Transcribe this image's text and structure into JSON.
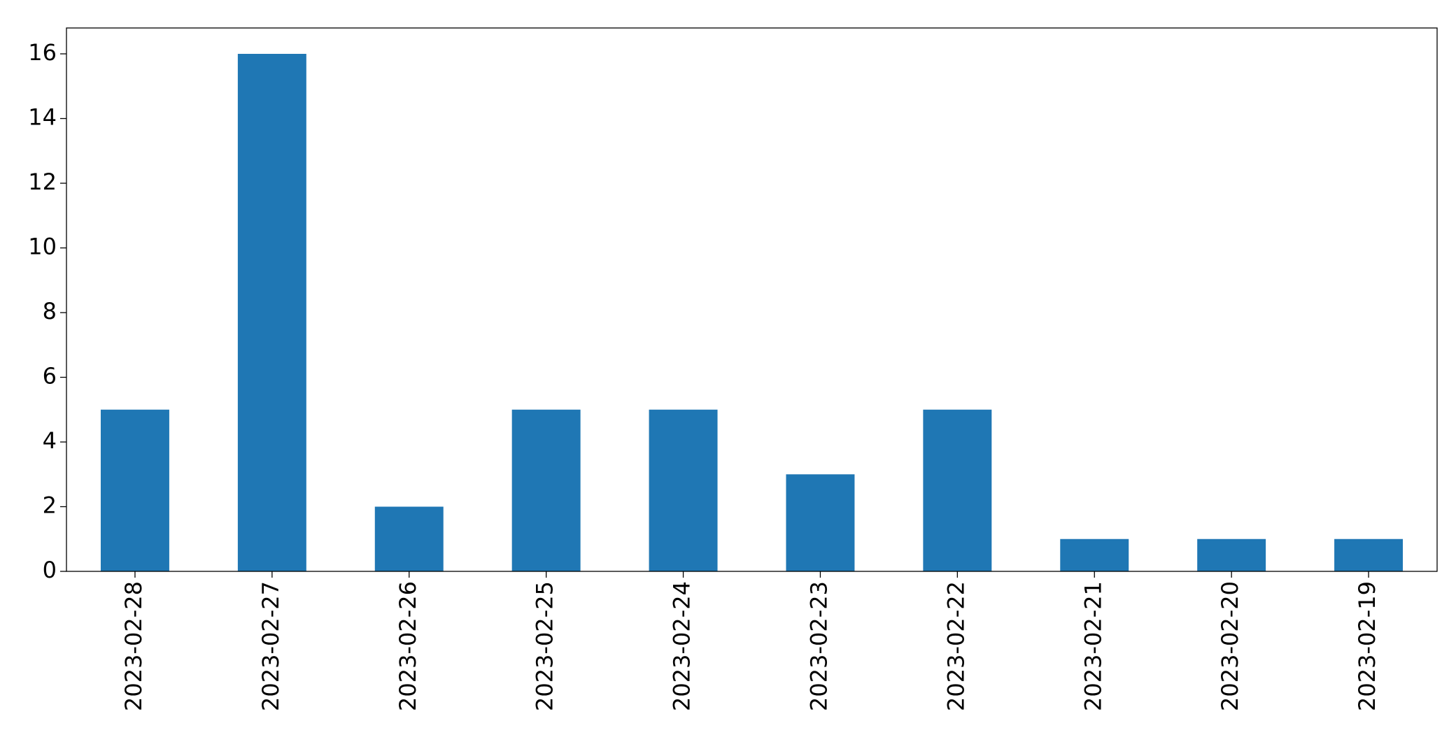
{
  "chart_data": {
    "type": "bar",
    "categories": [
      "2023-02-28",
      "2023-02-27",
      "2023-02-26",
      "2023-02-25",
      "2023-02-24",
      "2023-02-23",
      "2023-02-22",
      "2023-02-21",
      "2023-02-20",
      "2023-02-19"
    ],
    "values": [
      5,
      16,
      2,
      5,
      5,
      3,
      5,
      1,
      1,
      1
    ],
    "color": "#1f77b4",
    "ylim": [
      0,
      16.8
    ],
    "yticks": [
      0,
      2,
      4,
      6,
      8,
      10,
      12,
      14,
      16
    ],
    "grid": false
  }
}
